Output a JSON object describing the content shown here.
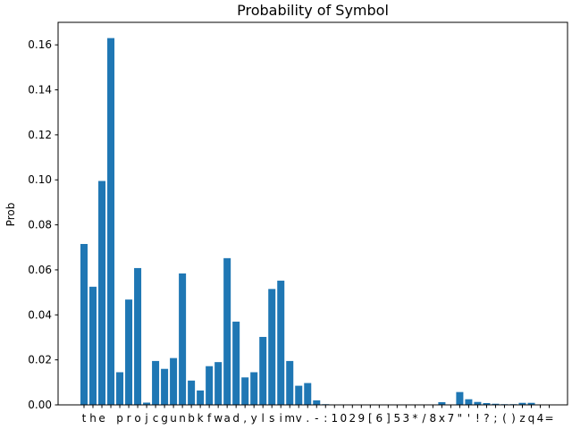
{
  "chart_data": {
    "type": "bar",
    "title": "Probability of Symbol",
    "xlabel": "",
    "ylabel": "Prob",
    "ylim": [
      0,
      0.17
    ],
    "yticks": [
      0.0,
      0.02,
      0.04,
      0.06,
      0.08,
      0.1,
      0.12,
      0.14,
      0.16
    ],
    "ytick_labels": [
      "0.00",
      "0.02",
      "0.04",
      "0.06",
      "0.08",
      "0.10",
      "0.12",
      "0.14",
      "0.16"
    ],
    "grid": false,
    "bar_color": "#1f77b4",
    "categories": [
      "t",
      "h",
      "e",
      " ",
      "p",
      "r",
      "o",
      "j",
      "c",
      "g",
      "u",
      "n",
      "b",
      "k",
      "f",
      "w",
      "a",
      "d",
      ",",
      "y",
      "l",
      "s",
      "i",
      "m",
      "v",
      ".",
      "-",
      ":",
      "1",
      "0",
      "2",
      "9",
      "[",
      "6",
      "]",
      "5",
      "3",
      "*",
      "/",
      "8",
      "x",
      "7",
      "\"",
      "'",
      "!",
      "?",
      ";",
      "(",
      ")",
      "z",
      "q",
      "4",
      "="
    ],
    "values": [
      0.0715,
      0.0525,
      0.0995,
      0.163,
      0.0145,
      0.0468,
      0.0608,
      0.001,
      0.0195,
      0.016,
      0.0208,
      0.0584,
      0.0108,
      0.0064,
      0.0172,
      0.019,
      0.0652,
      0.037,
      0.0122,
      0.0145,
      0.0302,
      0.0515,
      0.0552,
      0.0195,
      0.0085,
      0.0097,
      0.002,
      0.0003,
      0.0002,
      0.0002,
      0.0002,
      0.0002,
      0.0002,
      0.0002,
      0.0002,
      0.0002,
      0.0002,
      0.0002,
      0.0002,
      0.0002,
      0.0012,
      0.0002,
      0.0057,
      0.0025,
      0.0013,
      0.0008,
      0.0005,
      0.0003,
      0.0003,
      0.0009,
      0.0009,
      0.0002,
      0.0002
    ]
  }
}
